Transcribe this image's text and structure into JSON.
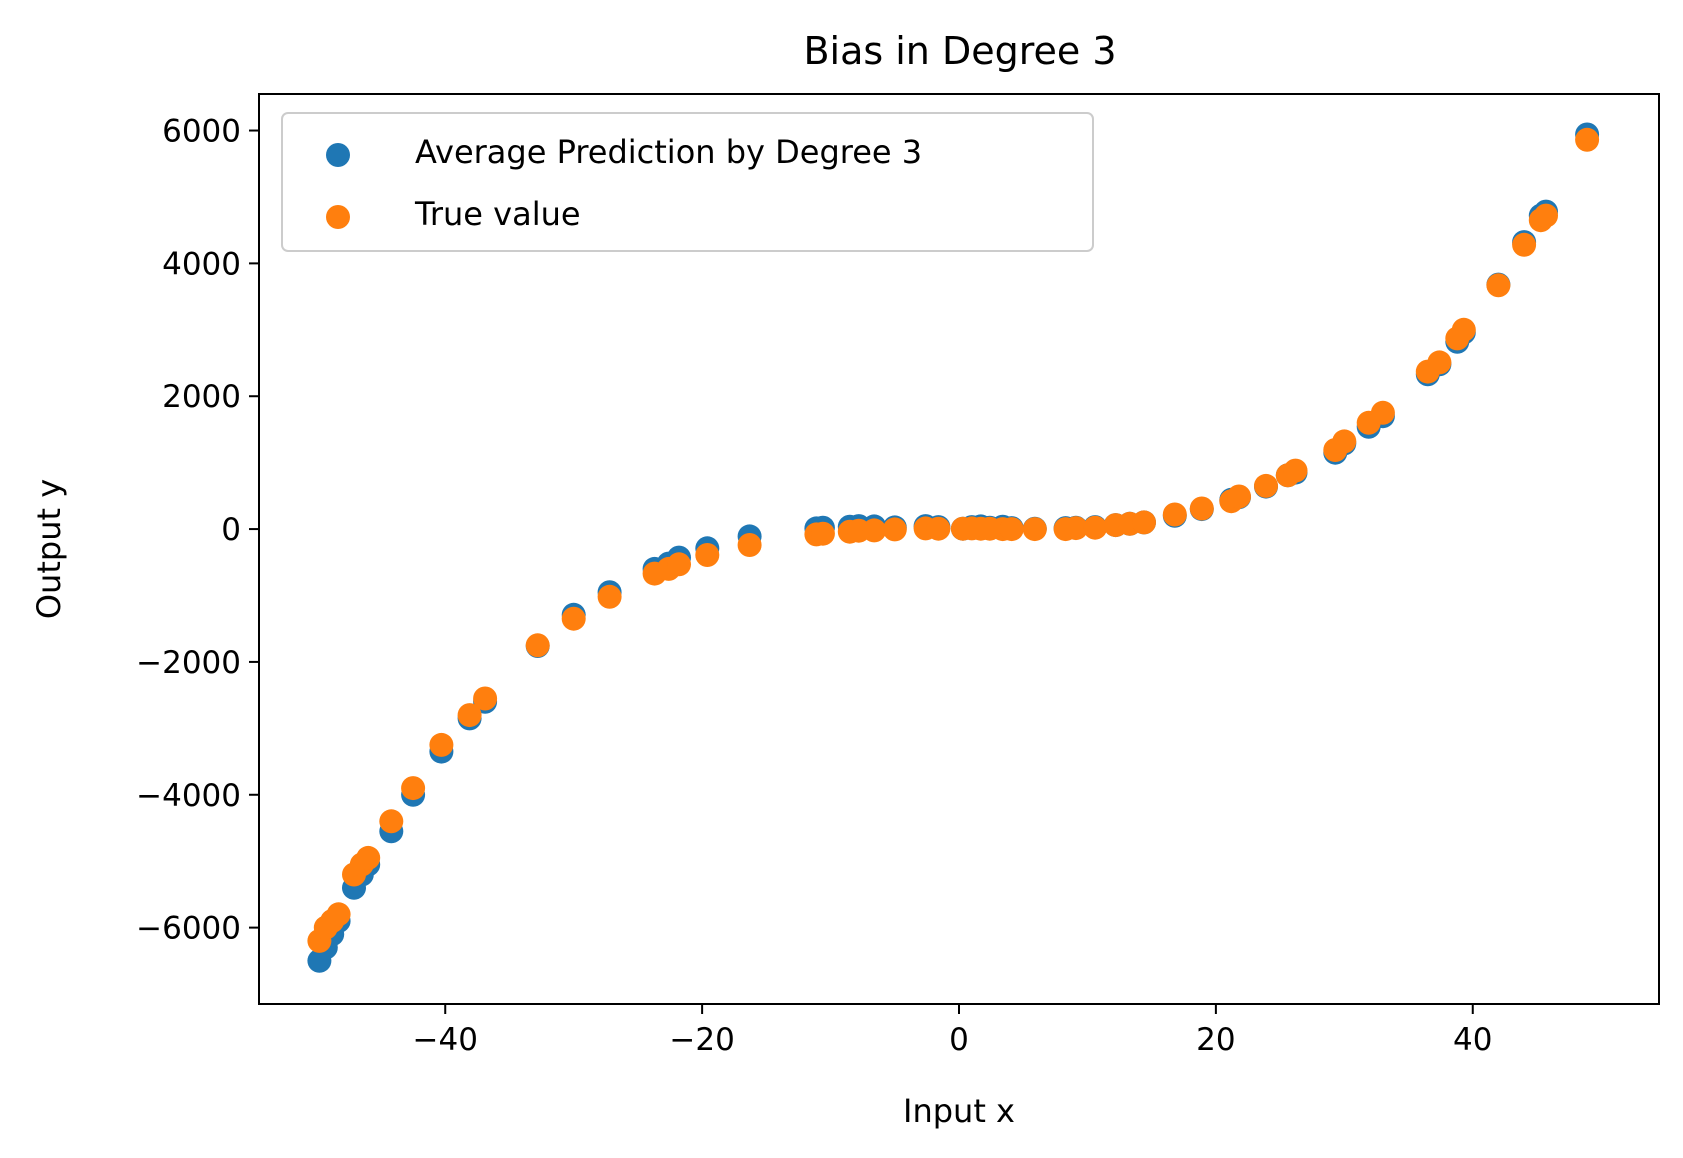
{
  "chart_data": {
    "type": "scatter",
    "title": "Bias in Degree 3",
    "xlabel": "Input x",
    "ylabel": "Output y",
    "xlim": [
      -54.5,
      54.5
    ],
    "ylim": [
      -7150,
      6550
    ],
    "xticks": [
      -40,
      -20,
      0,
      20,
      40
    ],
    "xtick_labels": [
      "−40",
      "−20",
      "0",
      "20",
      "40"
    ],
    "yticks": [
      -6000,
      -4000,
      -2000,
      0,
      2000,
      4000,
      6000
    ],
    "ytick_labels": [
      "−6000",
      "−4000",
      "−2000",
      "0",
      "2000",
      "4000",
      "6000"
    ],
    "grid": false,
    "legend_position": "top-left",
    "series": [
      {
        "name": "Average Prediction by Degree 3",
        "color": "#1f77b4",
        "x": [
          -49.8,
          -49.3,
          -48.8,
          -48.3,
          -47.1,
          -46.5,
          -46.0,
          -44.2,
          -42.5,
          -40.3,
          -38.1,
          -36.9,
          -32.8,
          -30.0,
          -27.2,
          -23.7,
          -22.6,
          -21.8,
          -19.6,
          -16.3,
          -11.1,
          -10.6,
          -8.5,
          -7.8,
          -6.6,
          -5.0,
          -2.6,
          -1.6,
          0.3,
          1.0,
          1.7,
          2.4,
          3.4,
          4.1,
          5.9,
          8.3,
          9.1,
          10.6,
          12.2,
          13.3,
          14.4,
          16.8,
          18.9,
          21.2,
          21.8,
          23.9,
          25.6,
          26.2,
          29.3,
          30.0,
          31.9,
          33.0,
          36.5,
          37.4,
          38.8,
          39.3,
          42.0,
          44.0,
          45.3,
          45.7,
          48.9
        ],
        "y": [
          -6500,
          -6300,
          -6100,
          -5900,
          -5400,
          -5200,
          -5050,
          -4550,
          -4000,
          -3350,
          -2850,
          -2600,
          -1760,
          -1290,
          -950,
          -600,
          -520,
          -430,
          -290,
          -110,
          10,
          20,
          35,
          45,
          40,
          25,
          45,
          30,
          5,
          30,
          40,
          20,
          35,
          15,
          5,
          15,
          20,
          30,
          60,
          80,
          100,
          200,
          300,
          440,
          480,
          640,
          810,
          850,
          1150,
          1290,
          1540,
          1700,
          2330,
          2480,
          2820,
          2960,
          3680,
          4320,
          4720,
          4780,
          5940
        ]
      },
      {
        "name": "True value",
        "color": "#ff7f0e",
        "x": [
          -49.8,
          -49.3,
          -48.8,
          -48.3,
          -47.1,
          -46.5,
          -46.0,
          -44.2,
          -42.5,
          -40.3,
          -38.1,
          -36.9,
          -32.8,
          -30.0,
          -27.2,
          -23.7,
          -22.6,
          -21.8,
          -19.6,
          -16.3,
          -11.1,
          -10.6,
          -8.5,
          -7.8,
          -6.6,
          -5.0,
          -2.6,
          -1.6,
          0.3,
          1.0,
          1.7,
          2.4,
          3.4,
          4.1,
          5.9,
          8.3,
          9.1,
          10.6,
          12.2,
          13.3,
          14.4,
          16.8,
          18.9,
          21.2,
          21.8,
          23.9,
          25.6,
          26.2,
          29.3,
          30.0,
          31.9,
          33.0,
          36.5,
          37.4,
          38.8,
          39.3,
          42.0,
          44.0,
          45.3,
          45.7,
          48.9
        ],
        "y": [
          -6200,
          -6000,
          -5900,
          -5800,
          -5200,
          -5050,
          -4950,
          -4400,
          -3900,
          -3250,
          -2800,
          -2550,
          -1750,
          -1350,
          -1020,
          -670,
          -600,
          -530,
          -390,
          -240,
          -80,
          -70,
          -40,
          -25,
          -20,
          -5,
          10,
          5,
          5,
          10,
          5,
          5,
          0,
          0,
          0,
          0,
          15,
          20,
          60,
          80,
          100,
          220,
          310,
          420,
          490,
          650,
          810,
          880,
          1190,
          1320,
          1600,
          1750,
          2370,
          2510,
          2870,
          3000,
          3670,
          4280,
          4650,
          4720,
          5860
        ]
      }
    ]
  }
}
